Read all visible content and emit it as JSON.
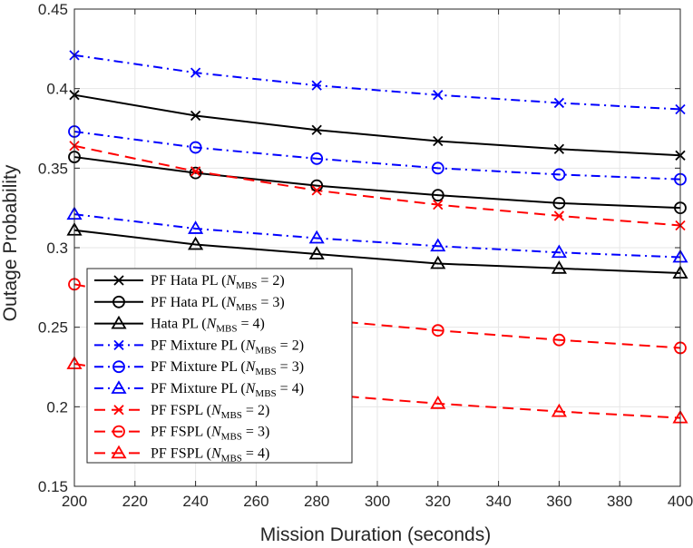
{
  "chart_data": {
    "type": "line",
    "title": "",
    "xlabel": "Mission Duration (seconds)",
    "ylabel": "Outage Probability",
    "xlim": [
      200,
      400
    ],
    "ylim": [
      0.15,
      0.45
    ],
    "xticks": [
      200,
      220,
      240,
      260,
      280,
      300,
      320,
      340,
      360,
      380,
      400
    ],
    "yticks": [
      0.15,
      0.2,
      0.25,
      0.3,
      0.35,
      0.4,
      0.45
    ],
    "xtick_labels": [
      "200",
      "220",
      "240",
      "260",
      "280",
      "300",
      "320",
      "340",
      "360",
      "380",
      "400"
    ],
    "ytick_labels": [
      "0.15",
      "0.2",
      "0.25",
      "0.3",
      "0.35",
      "0.4",
      "0.45"
    ],
    "grid": true,
    "legend_position": "lower-left",
    "x": [
      200,
      240,
      280,
      320,
      360,
      400
    ],
    "series": [
      {
        "name": "PF Hata PL",
        "nmbs": "2",
        "color": "#000000",
        "dash": "solid",
        "marker": "x",
        "values": [
          0.396,
          0.383,
          0.374,
          0.367,
          0.362,
          0.358
        ]
      },
      {
        "name": "PF Hata PL",
        "nmbs": "3",
        "color": "#000000",
        "dash": "solid",
        "marker": "o",
        "values": [
          0.357,
          0.347,
          0.339,
          0.333,
          0.328,
          0.325
        ]
      },
      {
        "name": "Hata PL",
        "nmbs": "4",
        "color": "#000000",
        "dash": "solid",
        "marker": "triangle",
        "values": [
          0.311,
          0.302,
          0.296,
          0.29,
          0.287,
          0.284
        ]
      },
      {
        "name": "PF Mixture PL",
        "nmbs": "2",
        "color": "#0000ff",
        "dash": "dashdot",
        "marker": "x",
        "values": [
          0.421,
          0.41,
          0.402,
          0.396,
          0.391,
          0.387
        ]
      },
      {
        "name": "PF Mixture PL",
        "nmbs": "3",
        "color": "#0000ff",
        "dash": "dashdot",
        "marker": "o",
        "values": [
          0.373,
          0.363,
          0.356,
          0.35,
          0.346,
          0.343
        ]
      },
      {
        "name": "PF Mixture PL",
        "nmbs": "4",
        "color": "#0000ff",
        "dash": "dashdot",
        "marker": "triangle",
        "values": [
          0.321,
          0.312,
          0.306,
          0.301,
          0.297,
          0.294
        ]
      },
      {
        "name": "PF FSPL",
        "nmbs": "2",
        "color": "#ff0000",
        "dash": "dashed",
        "marker": "x",
        "values": [
          0.364,
          0.348,
          0.336,
          0.327,
          0.32,
          0.314
        ]
      },
      {
        "name": "PF FSPL",
        "nmbs": "3",
        "color": "#ff0000",
        "dash": "dashed",
        "marker": "o",
        "values": [
          0.277,
          0.262,
          0.255,
          0.248,
          0.242,
          0.237
        ]
      },
      {
        "name": "PF FSPL",
        "nmbs": "4",
        "color": "#ff0000",
        "dash": "dashed",
        "marker": "triangle",
        "values": [
          0.227,
          0.215,
          0.208,
          0.202,
          0.197,
          0.193
        ]
      }
    ]
  }
}
